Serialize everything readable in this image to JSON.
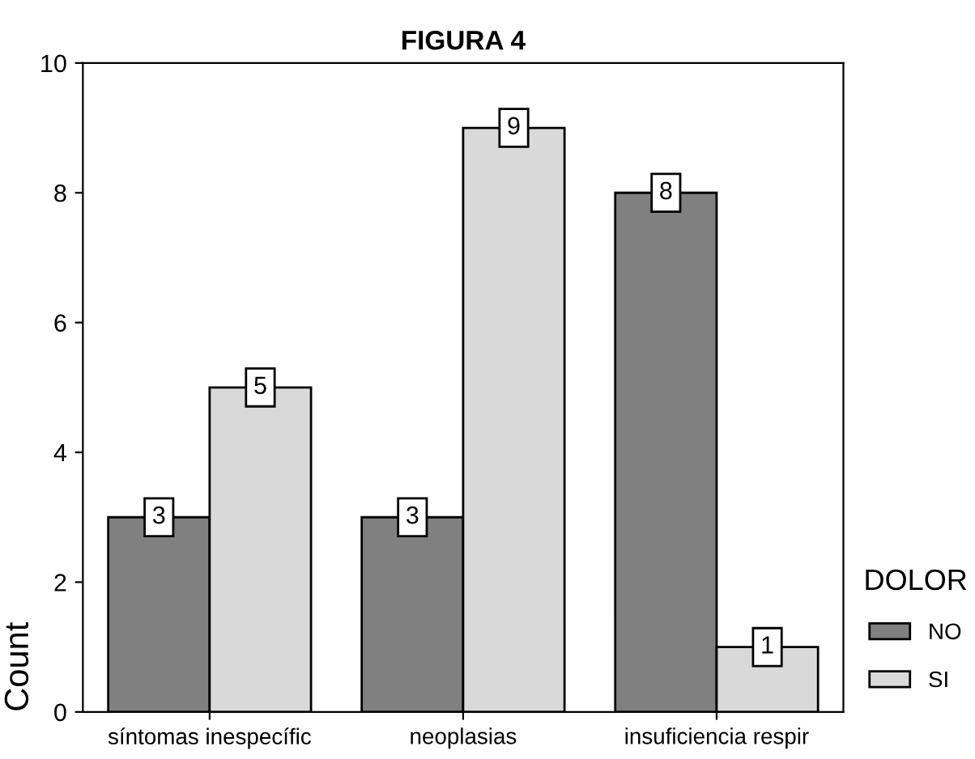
{
  "chart_data": {
    "type": "bar",
    "title": "FIGURA 4",
    "ylabel": "Count",
    "legend_title": "DOLOR",
    "categories": [
      "síntomas inespecífic",
      "neoplasias",
      "insuficiencia respir"
    ],
    "series": [
      {
        "name": "NO",
        "color": "#808080",
        "values": [
          3,
          3,
          8
        ]
      },
      {
        "name": "SI",
        "color": "#d9d9d9",
        "values": [
          5,
          9,
          1
        ]
      }
    ],
    "ylim": [
      0,
      10
    ],
    "yticks": [
      0,
      2,
      4,
      6,
      8,
      10
    ],
    "grid": false,
    "legend": "bottom right",
    "data_labels": true
  }
}
